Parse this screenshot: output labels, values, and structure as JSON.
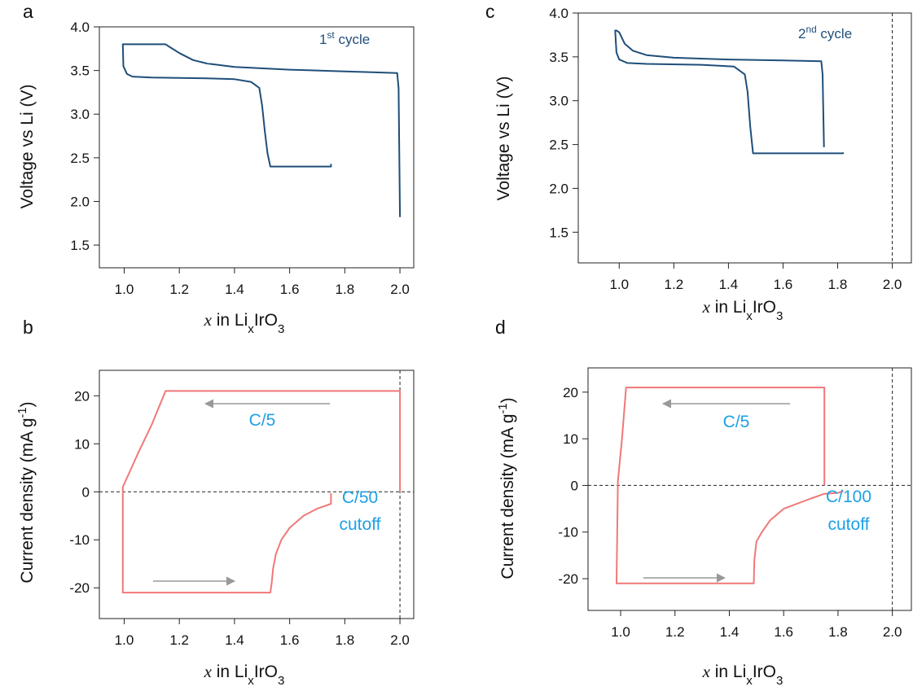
{
  "chart_data": [
    {
      "type": "line",
      "panel_label": "a",
      "xlabel": [
        "x",
        " in Li",
        "x",
        "IrO",
        "3"
      ],
      "ylabel": [
        "Voltage vs Li (V)"
      ],
      "annotations": [
        [
          "1",
          "st",
          " cycle"
        ]
      ],
      "xlim": [
        0.91,
        2.05
      ],
      "ylim": [
        1.24,
        4.0
      ],
      "xticks": [
        {
          "value": 1,
          "label": "1.0"
        },
        1.2,
        1.4,
        1.6,
        1.8,
        {
          "value": 2,
          "label": "2.0"
        }
      ],
      "yticks": [
        1.5,
        {
          "value": 2,
          "label": "2.0"
        },
        2.5,
        {
          "value": 3,
          "label": "3.0"
        },
        3.5,
        {
          "value": 4,
          "label": "4.0"
        }
      ],
      "vlines": [],
      "hlines": [],
      "series": [
        {
          "color": "#1f4e79",
          "x": [
            2.0,
            1.995,
            1.99,
            1.9,
            1.8,
            1.6,
            1.4,
            1.3,
            1.25,
            1.2,
            1.16,
            1.15,
            1.0,
            0.995,
            0.997,
            1.01,
            1.03,
            1.1,
            1.3,
            1.4,
            1.46,
            1.49,
            1.5,
            1.51,
            1.52,
            1.53,
            1.75,
            1.75
          ],
          "values": [
            1.82,
            3.3,
            3.47,
            3.48,
            3.49,
            3.51,
            3.54,
            3.58,
            3.62,
            3.7,
            3.78,
            3.8,
            3.8,
            3.8,
            3.55,
            3.46,
            3.43,
            3.42,
            3.41,
            3.4,
            3.37,
            3.3,
            3.1,
            2.8,
            2.55,
            2.4,
            2.4,
            2.43
          ]
        }
      ]
    },
    {
      "type": "line",
      "panel_label": "b",
      "xlabel": [
        "x",
        " in Li",
        "x",
        "IrO",
        "3"
      ],
      "ylabel": [
        "Current density (mA g",
        "-1",
        ")"
      ],
      "annotations": [
        [
          "C/5"
        ],
        [
          "C/50"
        ],
        [
          "cutoff"
        ]
      ],
      "xlim": [
        0.91,
        2.05
      ],
      "ylim": [
        -26.4,
        25.3
      ],
      "xticks": [
        {
          "value": 1,
          "label": "1.0"
        },
        1.2,
        1.4,
        1.6,
        1.8,
        {
          "value": 2,
          "label": "2.0"
        }
      ],
      "yticks": [
        -20,
        -10,
        0,
        10,
        20
      ],
      "vlines": [
        2
      ],
      "hlines": [
        0
      ],
      "series": [
        {
          "color": "#f07878",
          "x": [
            1.75,
            1.75,
            1.7,
            1.65,
            1.6,
            1.57,
            1.55,
            1.54,
            1.535,
            1.53,
            0.995,
            0.995,
            1.05,
            1.1,
            1.15,
            2.0,
            2.0
          ],
          "values": [
            -0.3,
            -2.5,
            -3.5,
            -5,
            -7.5,
            -10,
            -13,
            -16,
            -19,
            -21,
            -21,
            1,
            8,
            14,
            21,
            21,
            0
          ]
        }
      ]
    },
    {
      "type": "line",
      "panel_label": "c",
      "xlabel": [
        "x",
        " in Li",
        "x",
        "IrO",
        "3"
      ],
      "ylabel": [
        "Voltage vs Li (V)"
      ],
      "annotations": [
        [
          "2",
          "nd",
          " cycle"
        ]
      ],
      "xlim": [
        0.85,
        2.07
      ],
      "ylim": [
        1.15,
        4.0
      ],
      "xticks": [
        {
          "value": 1,
          "label": "1.0"
        },
        1.2,
        1.4,
        1.6,
        1.8,
        {
          "value": 2,
          "label": "2.0"
        }
      ],
      "yticks": [
        1.5,
        {
          "value": 2,
          "label": "2.0"
        },
        2.5,
        {
          "value": 3,
          "label": "3.0"
        },
        3.5,
        {
          "value": 4,
          "label": "4.0"
        }
      ],
      "vlines": [
        2
      ],
      "hlines": [],
      "series": [
        {
          "color": "#1f4e79",
          "x": [
            1.75,
            1.745,
            1.74,
            1.6,
            1.4,
            1.2,
            1.1,
            1.05,
            1.02,
            1.0,
            0.99,
            0.985,
            0.99,
            1.0,
            1.03,
            1.1,
            1.3,
            1.42,
            1.46,
            1.47,
            1.48,
            1.49,
            1.82,
            1.82
          ],
          "values": [
            2.47,
            3.3,
            3.45,
            3.46,
            3.47,
            3.49,
            3.52,
            3.57,
            3.65,
            3.78,
            3.8,
            3.8,
            3.55,
            3.47,
            3.43,
            3.42,
            3.41,
            3.39,
            3.3,
            3.1,
            2.7,
            2.4,
            2.4,
            2.41
          ]
        }
      ]
    },
    {
      "type": "line",
      "panel_label": "d",
      "xlabel": [
        "x",
        " in Li",
        "x",
        "IrO",
        "3"
      ],
      "ylabel": [
        "Current density (mA g",
        "-1",
        ")"
      ],
      "annotations": [
        [
          "C/5"
        ],
        [
          "C/100"
        ],
        [
          "cutoff"
        ]
      ],
      "xlim": [
        0.88,
        2.07
      ],
      "ylim": [
        -26.8,
        25.2
      ],
      "xticks": [
        {
          "value": 1,
          "label": "1.0"
        },
        1.2,
        1.4,
        1.6,
        1.8,
        {
          "value": 2,
          "label": "2.0"
        }
      ],
      "yticks": [
        -20,
        -10,
        0,
        10,
        20
      ],
      "vlines": [
        2
      ],
      "hlines": [
        0
      ],
      "series": [
        {
          "color": "#f07878",
          "x": [
            1.75,
            1.75,
            1.02,
            1.005,
            0.99,
            0.985,
            1.49,
            1.492,
            1.5,
            1.52,
            1.55,
            1.6,
            1.7,
            1.75,
            1.8,
            1.82
          ],
          "values": [
            0,
            21,
            21,
            10,
            1,
            -21,
            -21,
            -16,
            -12,
            -10,
            -7.5,
            -5,
            -2.8,
            -1.8,
            -1.6,
            -1.2
          ]
        }
      ]
    }
  ]
}
